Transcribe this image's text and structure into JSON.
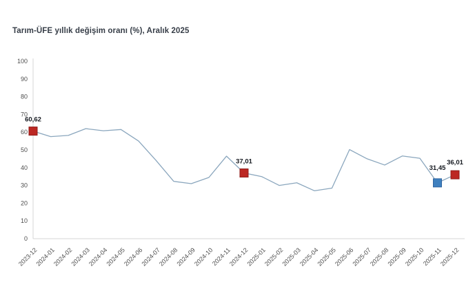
{
  "title": "Tarım-ÜFE yıllık değişim oranı (%), Aralık 2025",
  "colors": {
    "line": "#8aa6bd",
    "axis": "#d6d6d6",
    "tick_text": "#4d4d4d",
    "annotation_text": "#14181f",
    "red_marker_fill": "#bc2823",
    "red_marker_stroke": "#8f1b18",
    "blue_marker_fill": "#3f80bf",
    "blue_marker_stroke": "#2f64a0"
  },
  "chart_data": {
    "type": "line",
    "title": "Tarım-ÜFE yıllık değişim oranı (%), Aralık 2025",
    "xlabel": "",
    "ylabel": "",
    "ylim": [
      0,
      100
    ],
    "yticks": [
      0,
      10,
      20,
      30,
      40,
      50,
      60,
      70,
      80,
      90,
      100
    ],
    "grid": false,
    "legend_position": "none",
    "x": [
      "2023-12",
      "2024-01",
      "2024-02",
      "2024-03",
      "2024-04",
      "2024-05",
      "2024-06",
      "2024-07",
      "2024-08",
      "2024-09",
      "2024-10",
      "2024-11",
      "2024-12",
      "2025-01",
      "2025-02",
      "2025-03",
      "2025-04",
      "2025-05",
      "2025-06",
      "2025-07",
      "2025-08",
      "2025-09",
      "2025-10",
      "2025-11",
      "2025-12"
    ],
    "values": [
      60.62,
      57.5,
      58.2,
      62.0,
      60.8,
      61.5,
      55.0,
      44.0,
      32.3,
      31.0,
      34.5,
      46.5,
      37.01,
      35.0,
      30.0,
      31.5,
      27.0,
      28.5,
      50.2,
      45.0,
      41.5,
      46.6,
      45.3,
      31.45,
      36.01
    ],
    "annotated_points": [
      {
        "x": "2023-12",
        "value": 60.62,
        "label": "60,62",
        "marker": "red-square",
        "label_dy": -14
      },
      {
        "x": "2024-12",
        "value": 37.01,
        "label": "37,01",
        "marker": "red-square",
        "label_dy": -14
      },
      {
        "x": "2025-11",
        "value": 31.45,
        "label": "31,45",
        "marker": "blue-square",
        "label_dy": -19
      },
      {
        "x": "2025-12",
        "value": 36.01,
        "label": "36,01",
        "marker": "red-square",
        "label_dy": -15
      }
    ]
  }
}
